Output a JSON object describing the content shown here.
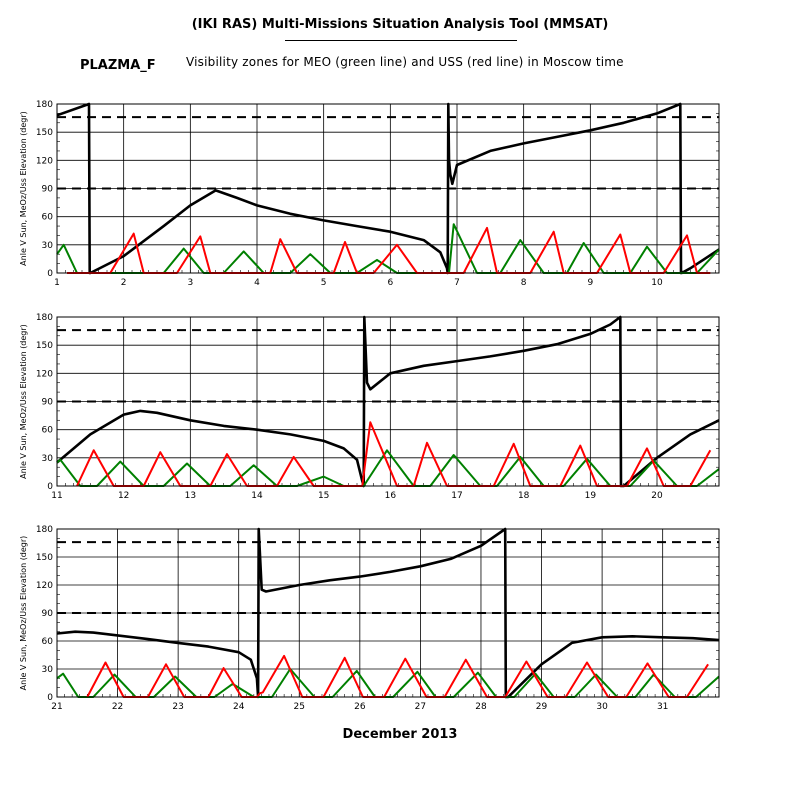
{
  "header": {
    "title": "(IKI RAS) Multi-Missions Situation Analysis Tool (MMSAT)",
    "station": "PLAZMA_F",
    "subtitle": "Visibility zones for MEO (green line) and USS (red line) in Moscow time"
  },
  "x_axis_label": "December 2013",
  "colors": {
    "sun_angle": "#000000",
    "meo": "#008000",
    "uss": "#ff0000",
    "grid": "#000000"
  },
  "chart_data": [
    {
      "type": "line",
      "panel": 1,
      "xlabel": "",
      "ylabel": "Anle V Sun, MeOz/Uss Elevation (degr)",
      "xlim": [
        1,
        10.93
      ],
      "ylim": [
        0,
        180
      ],
      "x_ticks": [
        1,
        2,
        3,
        4,
        5,
        6,
        7,
        8,
        9,
        10
      ],
      "y_ticks": [
        0,
        30,
        60,
        90,
        120,
        150,
        180
      ],
      "thresholds": [
        90,
        166
      ],
      "series": [
        {
          "x": [
            1.0,
            1.48,
            1.49,
            1.5,
            2.0,
            2.6,
            3.0,
            3.38,
            3.7,
            4.0,
            4.5,
            5.0,
            5.5,
            6.0,
            6.5,
            6.75,
            6.85,
            6.86,
            6.87,
            6.88,
            6.9,
            6.93,
            7.0,
            7.5,
            8.0,
            8.5,
            9.0,
            9.5,
            10.0,
            10.35,
            10.36,
            10.37,
            10.5,
            10.93
          ],
          "y": [
            168,
            180,
            0,
            0,
            18,
            50,
            72,
            88,
            80,
            72,
            63,
            56,
            50,
            44,
            35,
            22,
            5,
            0,
            180,
            120,
            105,
            95,
            115,
            130,
            138,
            145,
            152,
            160,
            170,
            180,
            0,
            0,
            5,
            25
          ]
        },
        {
          "x": [
            1.0,
            1.1,
            1.3,
            2.6,
            2.9,
            3.2,
            3.5,
            3.8,
            4.1,
            4.5,
            4.8,
            5.1,
            5.5,
            5.8,
            6.1,
            6.88,
            6.95,
            7.3,
            7.65,
            7.95,
            8.3,
            8.65,
            8.9,
            9.2,
            9.6,
            9.85,
            10.15,
            10.6,
            10.93
          ],
          "y": [
            20,
            30,
            0,
            0,
            26,
            0,
            0,
            23,
            0,
            0,
            20,
            0,
            0,
            14,
            0,
            0,
            52,
            0,
            0,
            35,
            0,
            0,
            32,
            0,
            0,
            28,
            0,
            0,
            25
          ]
        },
        {
          "x": [
            1.15,
            1.3,
            1.55,
            1.8,
            2.15,
            2.3,
            2.45,
            2.8,
            3.15,
            3.3,
            3.5,
            3.78,
            4.2,
            4.35,
            4.6,
            4.77,
            5.15,
            5.32,
            5.5,
            5.75,
            6.1,
            6.4,
            6.7,
            7.1,
            7.45,
            7.6,
            7.8,
            8.1,
            8.45,
            8.6,
            8.8,
            9.1,
            9.45,
            9.6,
            9.8,
            10.1,
            10.45,
            10.6,
            10.8
          ],
          "y": [
            0,
            0,
            0,
            0,
            42,
            0,
            0,
            0,
            39,
            0,
            0,
            0,
            0,
            36,
            0,
            0,
            0,
            33,
            0,
            0,
            30,
            0,
            0,
            0,
            48,
            0,
            0,
            0,
            44,
            0,
            0,
            0,
            41,
            0,
            0,
            0,
            40,
            0,
            0
          ]
        }
      ]
    },
    {
      "type": "line",
      "panel": 2,
      "xlabel": "",
      "ylabel": "Anle V Sun, MeOz/Uss Elevation (degr)",
      "xlim": [
        11,
        20.93
      ],
      "ylim": [
        0,
        180
      ],
      "x_ticks": [
        11,
        12,
        13,
        14,
        15,
        16,
        17,
        18,
        19,
        20
      ],
      "y_ticks": [
        0,
        30,
        60,
        90,
        120,
        150,
        180
      ],
      "thresholds": [
        90,
        166
      ],
      "series": [
        {
          "x": [
            11.0,
            11.5,
            12.0,
            12.25,
            12.5,
            13.0,
            13.5,
            14.0,
            14.5,
            15.0,
            15.3,
            15.5,
            15.58,
            15.6,
            15.61,
            15.65,
            15.7,
            16.0,
            16.5,
            17.0,
            17.5,
            18.0,
            18.5,
            19.0,
            19.3,
            19.45,
            19.46,
            19.5,
            20.0,
            20.5,
            20.93
          ],
          "y": [
            25,
            55,
            76,
            80,
            78,
            70,
            64,
            60,
            55,
            48,
            40,
            28,
            5,
            0,
            180,
            110,
            103,
            120,
            128,
            133,
            138,
            144,
            151,
            162,
            172,
            180,
            0,
            0,
            30,
            55,
            70
          ]
        },
        {
          "x": [
            11.0,
            11.05,
            11.35,
            11.6,
            11.95,
            12.3,
            12.6,
            12.95,
            13.3,
            13.6,
            13.95,
            14.3,
            14.6,
            15.0,
            15.3,
            15.6,
            15.95,
            16.35,
            16.6,
            16.95,
            17.35,
            17.6,
            17.95,
            18.3,
            18.6,
            18.95,
            19.3,
            19.6,
            19.95,
            20.3,
            20.6,
            20.93
          ],
          "y": [
            25,
            28,
            0,
            0,
            26,
            0,
            0,
            24,
            0,
            0,
            22,
            0,
            0,
            10,
            0,
            0,
            38,
            0,
            0,
            33,
            0,
            0,
            31,
            0,
            0,
            29,
            0,
            0,
            27,
            0,
            0,
            18
          ]
        },
        {
          "x": [
            11.3,
            11.55,
            11.85,
            12.3,
            12.55,
            12.85,
            13.3,
            13.55,
            13.85,
            14.3,
            14.55,
            14.85,
            15.3,
            15.58,
            15.7,
            16.1,
            16.35,
            16.55,
            16.85,
            17.1,
            17.55,
            17.85,
            18.1,
            18.55,
            18.85,
            19.1,
            19.55,
            19.85,
            20.1,
            20.5,
            20.8
          ],
          "y": [
            0,
            38,
            0,
            0,
            36,
            0,
            0,
            34,
            0,
            0,
            31,
            0,
            0,
            0,
            68,
            0,
            0,
            46,
            0,
            0,
            0,
            45,
            0,
            0,
            43,
            0,
            0,
            40,
            0,
            0,
            38
          ]
        }
      ]
    },
    {
      "type": "line",
      "panel": 3,
      "xlabel": "December 2013",
      "ylabel": "Anle V Sun, MeOz/Uss Elevation (degr)",
      "xlim": [
        21,
        31.93
      ],
      "ylim": [
        0,
        180
      ],
      "x_ticks": [
        21,
        22,
        23,
        24,
        25,
        26,
        27,
        28,
        29,
        30,
        31
      ],
      "y_ticks": [
        0,
        30,
        60,
        90,
        120,
        150,
        180
      ],
      "thresholds": [
        90,
        166
      ],
      "series": [
        {
          "x": [
            21.0,
            21.3,
            21.6,
            22.0,
            22.5,
            23.0,
            23.5,
            24.0,
            24.2,
            24.3,
            24.32,
            24.33,
            24.38,
            24.45,
            25.0,
            25.5,
            26.0,
            26.5,
            27.0,
            27.5,
            28.0,
            28.4,
            28.41,
            28.45,
            29.0,
            29.5,
            30.0,
            30.5,
            31.0,
            31.5,
            31.93
          ],
          "y": [
            68,
            70,
            69,
            66,
            62,
            58,
            54,
            48,
            40,
            20,
            0,
            180,
            115,
            113,
            120,
            125,
            129,
            134,
            140,
            148,
            162,
            180,
            0,
            0,
            35,
            58,
            64,
            65,
            64,
            63,
            61
          ]
        },
        {
          "x": [
            21.0,
            21.1,
            21.35,
            21.6,
            21.95,
            22.3,
            22.6,
            22.95,
            23.3,
            23.6,
            23.9,
            24.25,
            24.55,
            24.85,
            25.25,
            25.55,
            25.95,
            26.25,
            26.55,
            26.95,
            27.25,
            27.55,
            27.95,
            28.25,
            28.55,
            28.9,
            29.2,
            29.55,
            29.9,
            30.25,
            30.55,
            30.85,
            31.2,
            31.55,
            31.93
          ],
          "y": [
            20,
            25,
            0,
            0,
            24,
            0,
            0,
            22,
            0,
            0,
            14,
            0,
            0,
            30,
            0,
            0,
            28,
            0,
            0,
            27,
            0,
            0,
            26,
            0,
            0,
            25,
            0,
            0,
            24,
            0,
            0,
            24,
            0,
            0,
            22
          ]
        },
        {
          "x": [
            21.5,
            21.8,
            22.1,
            22.5,
            22.8,
            23.1,
            23.5,
            23.75,
            24.05,
            24.3,
            24.35,
            24.4,
            24.75,
            25.05,
            25.4,
            25.75,
            26.05,
            26.4,
            26.75,
            27.1,
            27.4,
            27.75,
            28.1,
            28.4,
            28.75,
            29.1,
            29.4,
            29.75,
            30.1,
            30.4,
            30.75,
            31.1,
            31.4,
            31.75
          ],
          "y": [
            0,
            37,
            0,
            0,
            35,
            0,
            0,
            31,
            0,
            0,
            4,
            5,
            44,
            0,
            0,
            42,
            0,
            0,
            41,
            0,
            0,
            40,
            0,
            0,
            38,
            0,
            0,
            37,
            0,
            0,
            36,
            0,
            0,
            35
          ]
        }
      ]
    }
  ]
}
